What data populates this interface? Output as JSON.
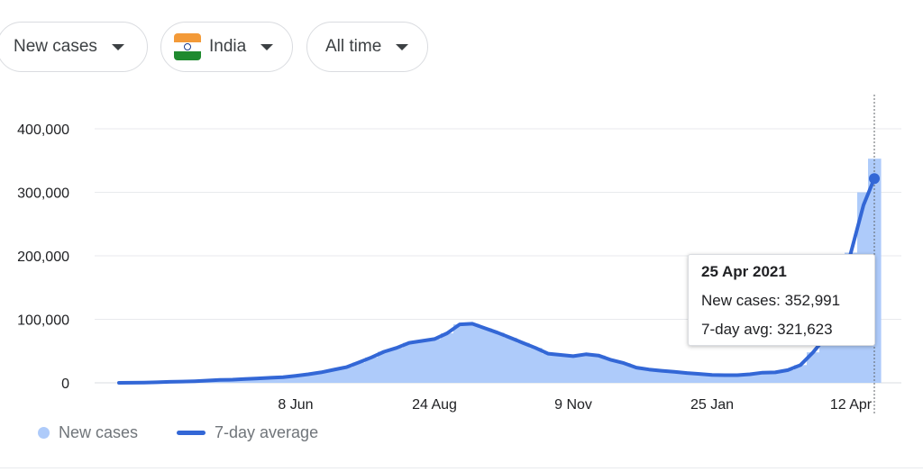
{
  "filters": {
    "metric": "New cases",
    "location": "India",
    "period": "All time"
  },
  "icons": {
    "dropdown": "triangle-down",
    "flag": "india-flag"
  },
  "colors": {
    "bar": "#aecbfa",
    "line": "#3367d6",
    "grid": "#e8eaed",
    "flag_saffron": "#f39a38",
    "flag_white": "#ffffff",
    "flag_green": "#1f8a2f"
  },
  "tooltip": {
    "date": "25 Apr 2021",
    "new_cases_label": "New cases:",
    "new_cases_value": "352,991",
    "avg_label": "7-day avg:",
    "avg_value": "321,623"
  },
  "legend": {
    "new_cases": "New cases",
    "avg": "7-day average"
  },
  "chart_data": {
    "type": "bar",
    "title": "",
    "xlabel": "",
    "ylabel": "",
    "ylim": [
      0,
      400000
    ],
    "y_ticks": [
      0,
      100000,
      200000,
      300000,
      400000
    ],
    "y_tick_labels": [
      "0",
      "100,000",
      "200,000",
      "300,000",
      "400,000"
    ],
    "x_tick_labels": [
      "8 Jun",
      "24 Aug",
      "9 Nov",
      "25 Jan",
      "12 Apr"
    ],
    "grid": true,
    "legend_position": "bottom-left",
    "series": [
      {
        "name": "New cases",
        "type": "bar",
        "dates": [
          "2020-03-02",
          "2020-03-09",
          "2020-03-16",
          "2020-03-23",
          "2020-03-30",
          "2020-04-06",
          "2020-04-13",
          "2020-04-20",
          "2020-04-27",
          "2020-05-04",
          "2020-05-11",
          "2020-05-18",
          "2020-05-25",
          "2020-06-01",
          "2020-06-08",
          "2020-06-15",
          "2020-06-22",
          "2020-06-29",
          "2020-07-06",
          "2020-07-13",
          "2020-07-20",
          "2020-07-27",
          "2020-08-03",
          "2020-08-10",
          "2020-08-17",
          "2020-08-24",
          "2020-08-31",
          "2020-09-07",
          "2020-09-14",
          "2020-09-21",
          "2020-09-28",
          "2020-10-05",
          "2020-10-12",
          "2020-10-19",
          "2020-10-26",
          "2020-11-02",
          "2020-11-09",
          "2020-11-16",
          "2020-11-23",
          "2020-11-30",
          "2020-12-07",
          "2020-12-14",
          "2020-12-21",
          "2020-12-28",
          "2021-01-04",
          "2021-01-11",
          "2021-01-18",
          "2021-01-25",
          "2021-02-01",
          "2021-02-08",
          "2021-02-15",
          "2021-02-22",
          "2021-03-01",
          "2021-03-08",
          "2021-03-15",
          "2021-03-22",
          "2021-03-29",
          "2021-04-05",
          "2021-04-12",
          "2021-04-19",
          "2021-04-25"
        ],
        "values": [
          0,
          100,
          300,
          800,
          1500,
          2000,
          2500,
          3500,
          4500,
          5000,
          6000,
          7000,
          8000,
          9000,
          11000,
          13500,
          16500,
          20500,
          24500,
          32000,
          40000,
          49000,
          55000,
          63000,
          66000,
          69000,
          78000,
          92000,
          93000,
          86000,
          79000,
          71000,
          63000,
          55000,
          46000,
          44000,
          42000,
          45000,
          43000,
          36000,
          31000,
          24000,
          21000,
          19000,
          17500,
          15500,
          14000,
          12500,
          12000,
          12000,
          13500,
          16000,
          16500,
          20000,
          28000,
          48000,
          72000,
          130000,
          205000,
          300000,
          352991
        ]
      },
      {
        "name": "7-day average",
        "type": "line",
        "dates": [
          "2020-03-02",
          "2020-03-09",
          "2020-03-16",
          "2020-03-23",
          "2020-03-30",
          "2020-04-06",
          "2020-04-13",
          "2020-04-20",
          "2020-04-27",
          "2020-05-04",
          "2020-05-11",
          "2020-05-18",
          "2020-05-25",
          "2020-06-01",
          "2020-06-08",
          "2020-06-15",
          "2020-06-22",
          "2020-06-29",
          "2020-07-06",
          "2020-07-13",
          "2020-07-20",
          "2020-07-27",
          "2020-08-03",
          "2020-08-10",
          "2020-08-17",
          "2020-08-24",
          "2020-08-31",
          "2020-09-07",
          "2020-09-14",
          "2020-09-21",
          "2020-09-28",
          "2020-10-05",
          "2020-10-12",
          "2020-10-19",
          "2020-10-26",
          "2020-11-02",
          "2020-11-09",
          "2020-11-16",
          "2020-11-23",
          "2020-11-30",
          "2020-12-07",
          "2020-12-14",
          "2020-12-21",
          "2020-12-28",
          "2021-01-04",
          "2021-01-11",
          "2021-01-18",
          "2021-01-25",
          "2021-02-01",
          "2021-02-08",
          "2021-02-15",
          "2021-02-22",
          "2021-03-01",
          "2021-03-08",
          "2021-03-15",
          "2021-03-22",
          "2021-03-29",
          "2021-04-05",
          "2021-04-12",
          "2021-04-19",
          "2021-04-25"
        ],
        "values": [
          0,
          100,
          300,
          800,
          1500,
          2000,
          2500,
          3500,
          4500,
          5000,
          6000,
          7000,
          8000,
          9000,
          11000,
          13500,
          16500,
          20500,
          24500,
          32000,
          40000,
          49000,
          55000,
          63000,
          66000,
          69000,
          78000,
          92000,
          93000,
          86000,
          79000,
          71000,
          63000,
          55000,
          46000,
          44000,
          42000,
          45000,
          43000,
          36000,
          31000,
          24000,
          21000,
          19000,
          17500,
          15500,
          14000,
          12500,
          12000,
          12000,
          13500,
          16000,
          16500,
          20000,
          28000,
          48000,
          72000,
          130000,
          205000,
          280000,
          321623
        ]
      }
    ]
  }
}
